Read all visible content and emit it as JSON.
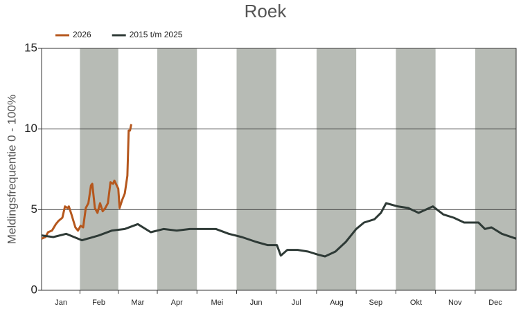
{
  "chart_data": {
    "type": "line",
    "title": "Roek",
    "y_label": "Meldingsfrequentie 0 - 100%",
    "xlim": [
      1,
      366
    ],
    "xticks": [
      {
        "value": 16,
        "label": "Jan"
      },
      {
        "value": 45,
        "label": "Feb"
      },
      {
        "value": 75,
        "label": "Mar"
      },
      {
        "value": 105,
        "label": "Apr"
      },
      {
        "value": 136,
        "label": "Mei"
      },
      {
        "value": 166,
        "label": "Jun"
      },
      {
        "value": 197,
        "label": "Jul"
      },
      {
        "value": 228,
        "label": "Aug"
      },
      {
        "value": 258,
        "label": "Sep"
      },
      {
        "value": 289,
        "label": "Okt"
      },
      {
        "value": 319,
        "label": "Nov"
      },
      {
        "value": 350,
        "label": "Dec"
      }
    ],
    "ylim": [
      0,
      15
    ],
    "yticks": [
      0,
      5,
      10,
      15
    ],
    "grid": true,
    "band_color": "#b7bbb5",
    "series": [
      {
        "name": "2026",
        "color": "#b5571d",
        "x": [
          1,
          4,
          6,
          9,
          12,
          14,
          17,
          19,
          21,
          22,
          24,
          27,
          29,
          31,
          33,
          35,
          37,
          39,
          40,
          42,
          44,
          46,
          48,
          50,
          52,
          54,
          56,
          57,
          60,
          61,
          63,
          65,
          67,
          68,
          69,
          70
        ],
        "values": [
          3.2,
          3.3,
          3.6,
          3.7,
          4.1,
          4.3,
          4.5,
          5.2,
          5.1,
          5.2,
          4.7,
          3.9,
          3.7,
          4.0,
          3.9,
          5.1,
          5.4,
          6.5,
          6.6,
          5.1,
          4.8,
          5.4,
          4.9,
          5.1,
          5.4,
          6.7,
          6.6,
          6.8,
          6.3,
          5.1,
          5.6,
          6.0,
          7.1,
          9.9,
          9.9,
          10.3
        ]
      },
      {
        "name": "2015 t/m 2025",
        "color": "#2e3a36",
        "x": [
          1,
          10,
          20,
          32,
          45,
          55,
          65,
          75,
          85,
          95,
          105,
          115,
          125,
          135,
          145,
          155,
          166,
          175,
          182,
          185,
          190,
          198,
          206,
          214,
          219,
          227,
          235,
          243,
          249,
          257,
          262,
          266,
          275,
          283,
          291,
          302,
          310,
          318,
          326,
          337,
          342,
          347,
          355,
          366
        ],
        "values": [
          3.4,
          3.3,
          3.5,
          3.1,
          3.4,
          3.7,
          3.8,
          4.1,
          3.6,
          3.8,
          3.7,
          3.8,
          3.8,
          3.8,
          3.5,
          3.3,
          3.0,
          2.8,
          2.8,
          2.15,
          2.5,
          2.5,
          2.4,
          2.2,
          2.1,
          2.4,
          3.0,
          3.8,
          4.2,
          4.4,
          4.8,
          5.4,
          5.2,
          5.1,
          4.8,
          5.2,
          4.7,
          4.5,
          4.2,
          4.2,
          3.8,
          3.9,
          3.5,
          3.2
        ]
      }
    ]
  }
}
